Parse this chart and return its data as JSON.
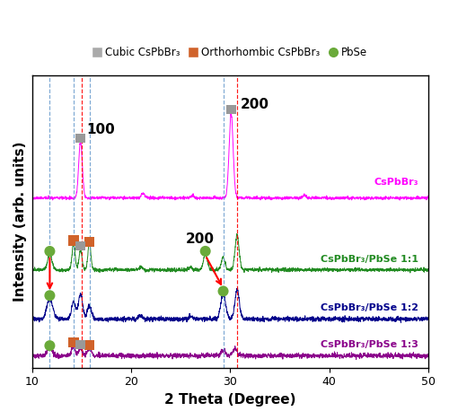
{
  "xlabel": "2 Theta (Degree)",
  "ylabel": "Intensity (arb. units)",
  "xlim": [
    10,
    50
  ],
  "legend_labels": [
    "Cubic CsPbBr₃",
    "Orthorhombic CsPbBr₃",
    "PbSe"
  ],
  "legend_colors": [
    "#aaaaaa",
    "#D0622A",
    "#6aaa3a"
  ],
  "curve_labels": [
    "CsPbBr₃",
    "CsPbBr₃/PbSe 1:1",
    "CsPbBr₃/PbSe 1:2",
    "CsPbBr₃/PbSe 1:3"
  ],
  "curve_colors": [
    "#FF00FF",
    "#228B22",
    "#00008B",
    "#8B008B"
  ],
  "offsets": [
    2.2,
    1.2,
    0.5,
    0.0
  ],
  "blue_dashed_lines": [
    11.8,
    14.2,
    15.8,
    29.3
  ],
  "red_dashed_lines": [
    15.0,
    30.7
  ],
  "background_color": "#ffffff",
  "fig_width": 5.0,
  "fig_height": 4.68,
  "dpi": 100,
  "gray_color": "#999999",
  "orange_color": "#D0622A",
  "green_marker_color": "#6aaa3a",
  "seed": 42
}
